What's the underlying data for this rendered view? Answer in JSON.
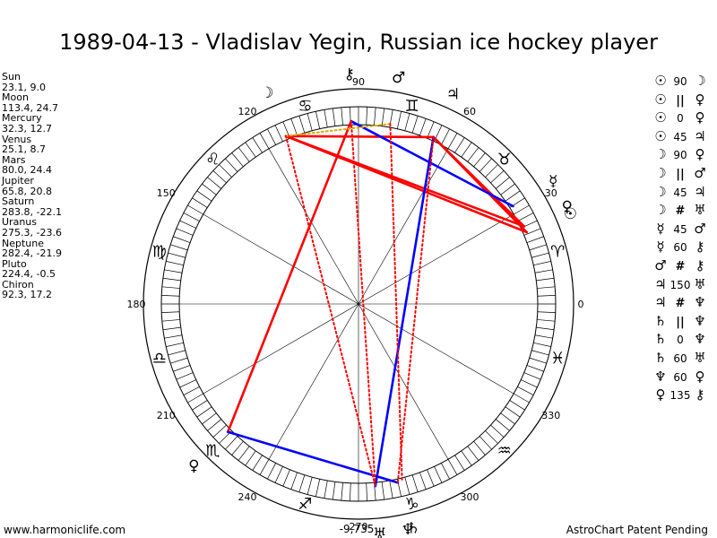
{
  "title": "1989-04-13 - Vladislav Yegin, Russian ice hockey player",
  "planets": [
    {
      "name": "Sun",
      "values": "23.1, 9.0",
      "lon": 23.1,
      "glyph": "☉"
    },
    {
      "name": "Moon",
      "values": "113.4, 24.7",
      "lon": 113.4,
      "glyph": "☽"
    },
    {
      "name": "Mercury",
      "values": "32.3, 12.7",
      "lon": 32.3,
      "glyph": "☿"
    },
    {
      "name": "Venus",
      "values": "25.1, 8.7",
      "lon": 25.1,
      "glyph": "♀"
    },
    {
      "name": "Mars",
      "values": "80.0, 24.4",
      "lon": 80.0,
      "glyph": "♂"
    },
    {
      "name": "Jupiter",
      "values": "65.8, 20.8",
      "lon": 65.8,
      "glyph": "♃"
    },
    {
      "name": "Saturn",
      "values": "283.8, -22.1",
      "lon": 283.8,
      "glyph": "♄"
    },
    {
      "name": "Uranus",
      "values": "275.3, -23.6",
      "lon": 275.3,
      "glyph": "♅"
    },
    {
      "name": "Neptune",
      "values": "282.4, -21.9",
      "lon": 282.4,
      "glyph": "♆"
    },
    {
      "name": "Pluto",
      "values": "224.4, -0.5",
      "lon": 224.4,
      "glyph": "♀"
    },
    {
      "name": "Chiron",
      "values": "92.3, 17.2",
      "lon": 92.3,
      "glyph": "⚷"
    }
  ],
  "aspects": [
    {
      "p1": "☉",
      "angle": "90",
      "p2": "☽"
    },
    {
      "p1": "☉",
      "angle": "||",
      "p2": "♀"
    },
    {
      "p1": "☉",
      "angle": "0",
      "p2": "♀"
    },
    {
      "p1": "☉",
      "angle": "45",
      "p2": "♃"
    },
    {
      "p1": "☽",
      "angle": "90",
      "p2": "♀"
    },
    {
      "p1": "☽",
      "angle": "||",
      "p2": "♂"
    },
    {
      "p1": "☽",
      "angle": "45",
      "p2": "♃"
    },
    {
      "p1": "☽",
      "angle": "#",
      "p2": "♅"
    },
    {
      "p1": "☿",
      "angle": "45",
      "p2": "♂"
    },
    {
      "p1": "☿",
      "angle": "60",
      "p2": "⚷"
    },
    {
      "p1": "♂",
      "angle": "#",
      "p2": "⚷"
    },
    {
      "p1": "♃",
      "angle": "150",
      "p2": "♅"
    },
    {
      "p1": "♃",
      "angle": "#",
      "p2": "♆"
    },
    {
      "p1": "♄",
      "angle": "||",
      "p2": "♆"
    },
    {
      "p1": "♄",
      "angle": "0",
      "p2": "♆"
    },
    {
      "p1": "♄",
      "angle": "60",
      "p2": "♅"
    },
    {
      "p1": "♆",
      "angle": "60",
      "p2": "♀"
    },
    {
      "p1": "♀",
      "angle": "135",
      "p2": "⚷"
    }
  ],
  "degree_labels": [
    {
      "deg": 0,
      "text": "0"
    },
    {
      "deg": 30,
      "text": "30"
    },
    {
      "deg": 60,
      "text": "60"
    },
    {
      "deg": 90,
      "text": "90"
    },
    {
      "deg": 120,
      "text": "120"
    },
    {
      "deg": 150,
      "text": "150"
    },
    {
      "deg": 180,
      "text": "180"
    },
    {
      "deg": 210,
      "text": "210"
    },
    {
      "deg": 240,
      "text": "240"
    },
    {
      "deg": 270,
      "text": "270"
    },
    {
      "deg": 300,
      "text": "300"
    },
    {
      "deg": 330,
      "text": "330"
    }
  ],
  "zodiac": [
    {
      "deg": 15,
      "glyph": "♈"
    },
    {
      "deg": 45,
      "glyph": "♉"
    },
    {
      "deg": 75,
      "glyph": "♊"
    },
    {
      "deg": 105,
      "glyph": "♋"
    },
    {
      "deg": 135,
      "glyph": "♌"
    },
    {
      "deg": 165,
      "glyph": "♍"
    },
    {
      "deg": 195,
      "glyph": "♎"
    },
    {
      "deg": 225,
      "glyph": "♏"
    },
    {
      "deg": 255,
      "glyph": "♐"
    },
    {
      "deg": 285,
      "glyph": "♑"
    },
    {
      "deg": 315,
      "glyph": "♒"
    },
    {
      "deg": 345,
      "glyph": "♓"
    }
  ],
  "aspect_lines": [
    {
      "from": "Moon",
      "to": "Sun",
      "color": "#ff0000",
      "style": "solid"
    },
    {
      "from": "Moon",
      "to": "Venus",
      "color": "#ff0000",
      "style": "solid"
    },
    {
      "from": "Moon",
      "to": "Jupiter",
      "color": "#ff0000",
      "style": "solid"
    },
    {
      "from": "Jupiter",
      "to": "Sun",
      "color": "#ff0000",
      "style": "solid"
    },
    {
      "from": "Jupiter",
      "to": "Venus",
      "color": "#ff0000",
      "style": "solid"
    },
    {
      "from": "Chiron",
      "to": "Pluto",
      "color": "#ff0000",
      "style": "solid"
    },
    {
      "from": "Chiron",
      "to": "Mercury",
      "color": "#0000ff",
      "style": "solid"
    },
    {
      "from": "Jupiter",
      "to": "Uranus",
      "color": "#0000ff",
      "style": "solid"
    },
    {
      "from": "Pluto",
      "to": "Neptune",
      "color": "#0000ff",
      "style": "solid"
    },
    {
      "from": "Moon",
      "to": "Mars",
      "color": "#ddaa00",
      "style": "dotted"
    },
    {
      "from": "Moon",
      "to": "Uranus",
      "color": "#ff0000",
      "style": "dotted"
    },
    {
      "from": "Mars",
      "to": "Saturn",
      "color": "#ff0000",
      "style": "dotted"
    },
    {
      "from": "Chiron",
      "to": "Uranus",
      "color": "#ff0000",
      "style": "dotted"
    },
    {
      "from": "Jupiter",
      "to": "Neptune",
      "color": "#ff0000",
      "style": "dotted"
    }
  ],
  "bottom_value": "-9,735",
  "site_link": "www.harmoniclife.com",
  "patent_text": "AstroChart Patent Pending",
  "colors": {
    "red": "#ff0000",
    "blue": "#0000ff",
    "gold": "#ddaa00"
  }
}
